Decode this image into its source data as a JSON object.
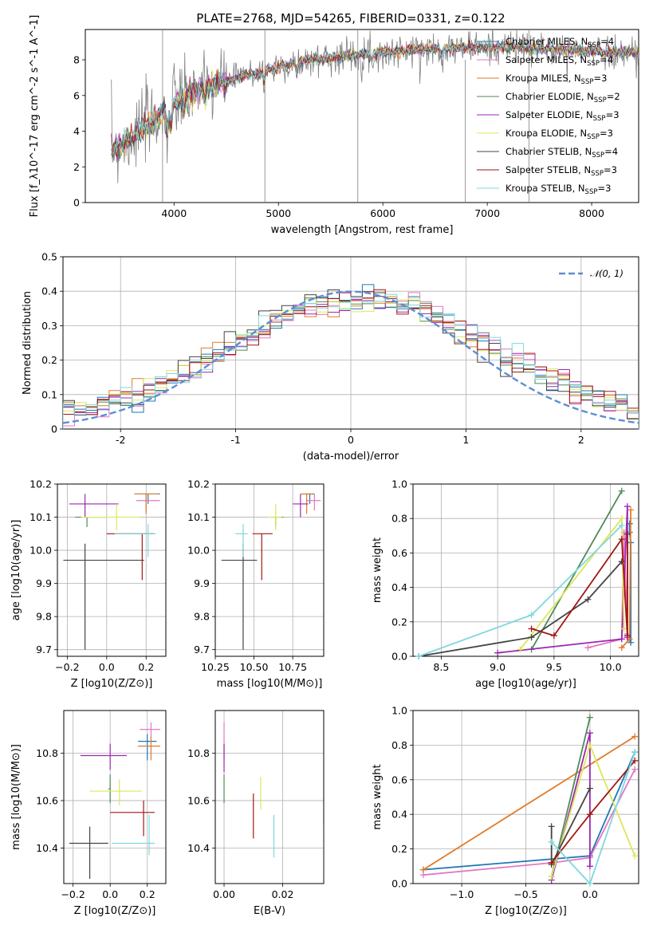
{
  "figure": {
    "title": "PLATE=2768, MJD=54265, FIBERID=0331, z=0.122"
  },
  "models": [
    {
      "name": "Chabrier MILES",
      "nssp": "4",
      "color": "#1f77b4"
    },
    {
      "name": "Salpeter MILES",
      "nssp": "4",
      "color": "#e377c2"
    },
    {
      "name": "Kroupa MILES",
      "nssp": "3",
      "color": "#e07b28"
    },
    {
      "name": "Chabrier ELODIE",
      "nssp": "2",
      "color": "#4e8a5a"
    },
    {
      "name": "Salpeter ELODIE",
      "nssp": "3",
      "color": "#9b27b0"
    },
    {
      "name": "Kroupa ELODIE",
      "nssp": "3",
      "color": "#dde65a"
    },
    {
      "name": "Chabrier STELIB",
      "nssp": "4",
      "color": "#444444"
    },
    {
      "name": "Salpeter STELIB",
      "nssp": "3",
      "color": "#a31515"
    },
    {
      "name": "Kroupa STELIB",
      "nssp": "3",
      "color": "#7fd8dc"
    }
  ],
  "chart_data": [
    {
      "id": "spectrum",
      "type": "line",
      "xlabel": "wavelength [Angstrom, rest frame]",
      "ylabel": "Flux [f_λ10^-17 erg cm^-2 s^-1 A^-1]",
      "xlim": [
        3150,
        8450
      ],
      "ylim": [
        0,
        9.7
      ],
      "xticks": [
        4000,
        5000,
        6000,
        7000,
        8000
      ],
      "yticks": [
        0,
        2,
        4,
        6,
        8
      ],
      "legend": "upper-right",
      "data_color": "#808080",
      "continuum": {
        "x": [
          3400,
          3500,
          3700,
          3900,
          4000,
          4200,
          4500,
          4800,
          5200,
          5600,
          6000,
          6400,
          6800,
          7200,
          7600,
          8000,
          8200
        ],
        "y": [
          3.0,
          3.2,
          4.2,
          5.0,
          5.6,
          6.2,
          6.8,
          7.3,
          7.9,
          8.2,
          8.4,
          8.6,
          8.7,
          8.7,
          8.6,
          8.5,
          8.4
        ]
      },
      "data_range": [
        3400,
        8450
      ]
    },
    {
      "id": "residuals",
      "type": "histogram",
      "xlabel": "(data-model)/error",
      "ylabel": "Normed distribution",
      "xlim": [
        -2.5,
        2.5
      ],
      "ylim": [
        0,
        0.5
      ],
      "xticks": [
        -2,
        -1,
        0,
        1,
        2
      ],
      "yticks": [
        0.0,
        0.1,
        0.2,
        0.3,
        0.4,
        0.5
      ],
      "bin_width": 0.1,
      "legend_label": "𝒩(0, 1)",
      "gaussian_color": "#5b8ed6",
      "grid": true
    },
    {
      "id": "age-vs-Z",
      "type": "errorbar",
      "xlabel": "Z [log10(Z/Z⊙)]",
      "ylabel": "age  [log10(age/yr)]",
      "xlim": [
        -0.25,
        0.3
      ],
      "ylim": [
        9.68,
        10.2
      ],
      "xticks": [
        -0.2,
        0.0,
        0.2
      ],
      "xticklabels": [
        "−0.2",
        "0.0",
        "0.2"
      ],
      "yticks": [
        9.7,
        9.8,
        9.9,
        10.0,
        10.1,
        10.2
      ],
      "yticklabels": [
        "9.7",
        "9.8",
        "9.9",
        "10.0",
        "10.1",
        "10.2"
      ],
      "points": [
        {
          "m": 0,
          "x": 0.21,
          "y": 10.17,
          "xe": [
            0.07,
            0.06
          ],
          "ye": [
            0.03,
            0.0
          ]
        },
        {
          "m": 1,
          "x": 0.2,
          "y": 10.15,
          "xe": [
            0.05,
            0.07
          ],
          "ye": [
            0.03,
            0.02
          ]
        },
        {
          "m": 2,
          "x": 0.2,
          "y": 10.17,
          "xe": [
            0.06,
            0.06
          ],
          "ye": [
            0.06,
            0.0
          ]
        },
        {
          "m": 3,
          "x": -0.1,
          "y": 10.1,
          "xe": [
            0.06,
            0.1
          ],
          "ye": [
            0.03,
            0.0
          ]
        },
        {
          "m": 4,
          "x": -0.11,
          "y": 10.14,
          "xe": [
            0.08,
            0.17
          ],
          "ye": [
            0.04,
            0.03
          ]
        },
        {
          "m": 5,
          "x": 0.05,
          "y": 10.1,
          "xe": [
            0.18,
            0.12
          ],
          "ye": [
            0.04,
            0.04
          ]
        },
        {
          "m": 6,
          "x": -0.11,
          "y": 9.97,
          "xe": [
            0.11,
            0.3
          ],
          "ye": [
            0.27,
            0.05
          ]
        },
        {
          "m": 7,
          "x": 0.18,
          "y": 10.05,
          "xe": [
            0.18,
            0.06
          ],
          "ye": [
            0.14,
            0.0
          ]
        },
        {
          "m": 8,
          "x": 0.21,
          "y": 10.05,
          "xe": [
            0.17,
            0.04
          ],
          "ye": [
            0.07,
            0.03
          ]
        }
      ]
    },
    {
      "id": "age-vs-mass",
      "type": "errorbar",
      "xlabel": "mass [log10(M/M⊙)]",
      "ylabel": "",
      "xlim": [
        10.25,
        10.95
      ],
      "ylim": [
        9.68,
        10.2
      ],
      "xticks": [
        10.25,
        10.5,
        10.75
      ],
      "xticklabels": [
        "10.25",
        "10.50",
        "10.75"
      ],
      "yticks": [
        9.7,
        9.8,
        9.9,
        10.0,
        10.1,
        10.2
      ],
      "yticklabels": [
        "9.7",
        "9.8",
        "9.9",
        "10.0",
        "10.1",
        "10.2"
      ],
      "points": [
        {
          "m": 0,
          "x": 10.86,
          "y": 10.17,
          "xe": [
            0.03,
            0.03
          ],
          "ye": [
            0.03,
            0.0
          ]
        },
        {
          "m": 1,
          "x": 10.89,
          "y": 10.15,
          "xe": [
            0.05,
            0.04
          ],
          "ye": [
            0.03,
            0.02
          ]
        },
        {
          "m": 2,
          "x": 10.84,
          "y": 10.17,
          "xe": [
            0.04,
            0.04
          ],
          "ye": [
            0.06,
            0.0
          ]
        },
        {
          "m": 3,
          "x": 10.64,
          "y": 10.1,
          "xe": [
            0.03,
            0.05
          ],
          "ye": [
            0.03,
            0.0
          ]
        },
        {
          "m": 4,
          "x": 10.8,
          "y": 10.14,
          "xe": [
            0.05,
            0.05
          ],
          "ye": [
            0.04,
            0.03
          ]
        },
        {
          "m": 5,
          "x": 10.64,
          "y": 10.1,
          "xe": [
            0.05,
            0.04
          ],
          "ye": [
            0.04,
            0.04
          ]
        },
        {
          "m": 6,
          "x": 10.43,
          "y": 9.97,
          "xe": [
            0.14,
            0.09
          ],
          "ye": [
            0.27,
            0.05
          ]
        },
        {
          "m": 7,
          "x": 10.55,
          "y": 10.05,
          "xe": [
            0.06,
            0.07
          ],
          "ye": [
            0.14,
            0.0
          ]
        },
        {
          "m": 8,
          "x": 10.43,
          "y": 10.05,
          "xe": [
            0.05,
            0.03
          ],
          "ye": [
            0.07,
            0.03
          ]
        }
      ]
    },
    {
      "id": "weight-vs-age",
      "type": "line",
      "xlabel": "age  [log10(age/yr)]",
      "ylabel": "mass weight",
      "xlim": [
        8.25,
        10.25
      ],
      "ylim": [
        0,
        1.0
      ],
      "xticks": [
        8.5,
        9.0,
        9.5,
        10.0
      ],
      "xticklabels": [
        "8.5",
        "9.0",
        "9.5",
        "10.0"
      ],
      "yticks": [
        0,
        0.2,
        0.4,
        0.6,
        0.8,
        1.0
      ],
      "yticklabels": [
        "0.0",
        "0.2",
        "0.4",
        "0.6",
        "0.8",
        "1.0"
      ],
      "grid": true,
      "series": [
        {
          "m": 0,
          "x": [
            10.18,
            10.18,
            10.17,
            10.17
          ],
          "y": [
            0.08,
            0.66,
            0.72,
            0.77
          ]
        },
        {
          "m": 1,
          "x": [
            9.8,
            10.1,
            10.12,
            10.15
          ],
          "y": [
            0.05,
            0.1,
            0.72,
            0.13
          ]
        },
        {
          "m": 2,
          "x": [
            10.1,
            10.17,
            10.18
          ],
          "y": [
            0.05,
            0.1,
            0.85
          ]
        },
        {
          "m": 3,
          "x": [
            9.3,
            10.1
          ],
          "y": [
            0.04,
            0.96
          ]
        },
        {
          "m": 4,
          "x": [
            9.0,
            10.1,
            10.15,
            10.15
          ],
          "y": [
            0.02,
            0.1,
            0.87,
            0.11
          ]
        },
        {
          "m": 5,
          "x": [
            9.2,
            10.1,
            10.12
          ],
          "y": [
            0.04,
            0.8,
            0.16
          ]
        },
        {
          "m": 6,
          "x": [
            8.3,
            9.3,
            9.8,
            10.1
          ],
          "y": [
            0.0,
            0.11,
            0.33,
            0.55
          ]
        },
        {
          "m": 7,
          "x": [
            9.3,
            9.5,
            10.1,
            10.15,
            10.15
          ],
          "y": [
            0.16,
            0.12,
            0.68,
            0.12,
            0.71
          ]
        },
        {
          "m": 8,
          "x": [
            8.3,
            9.3,
            10.1
          ],
          "y": [
            0.0,
            0.24,
            0.76
          ]
        }
      ]
    },
    {
      "id": "mass-vs-Z",
      "type": "errorbar",
      "xlabel": "Z [log10(Z/Z⊙)]",
      "ylabel": "mass [log10(M/M⊙)]",
      "xlim": [
        -0.25,
        0.3
      ],
      "ylim": [
        10.25,
        10.98
      ],
      "xticks": [
        -0.2,
        0.0,
        0.2
      ],
      "xticklabels": [
        "−0.2",
        "0.0",
        "0.2"
      ],
      "yticks": [
        10.4,
        10.6,
        10.8
      ],
      "yticklabels": [
        "10.4",
        "10.6",
        "10.8"
      ],
      "points": [
        {
          "m": 0,
          "x": 0.2,
          "y": 10.85,
          "xe": [
            0.05,
            0.05
          ],
          "ye": [
            0.08,
            0.03
          ]
        },
        {
          "m": 1,
          "x": 0.22,
          "y": 10.9,
          "xe": [
            0.06,
            0.05
          ],
          "ye": [
            0.04,
            0.03
          ]
        },
        {
          "m": 2,
          "x": 0.22,
          "y": 10.83,
          "xe": [
            0.07,
            0.05
          ],
          "ye": [
            0.06,
            0.04
          ]
        },
        {
          "m": 3,
          "x": 0.0,
          "y": 10.65,
          "xe": [
            0.01,
            0.0
          ],
          "ye": [
            0.06,
            0.06
          ]
        },
        {
          "m": 4,
          "x": 0.0,
          "y": 10.79,
          "xe": [
            0.16,
            0.09
          ],
          "ye": [
            0.06,
            0.05
          ]
        },
        {
          "m": 5,
          "x": 0.05,
          "y": 10.64,
          "xe": [
            0.16,
            0.12
          ],
          "ye": [
            0.06,
            0.05
          ]
        },
        {
          "m": 6,
          "x": -0.11,
          "y": 10.42,
          "xe": [
            0.11,
            0.1
          ],
          "ye": [
            0.15,
            0.07
          ]
        },
        {
          "m": 7,
          "x": 0.18,
          "y": 10.55,
          "xe": [
            0.18,
            0.06
          ],
          "ye": [
            0.1,
            0.05
          ]
        },
        {
          "m": 8,
          "x": 0.21,
          "y": 10.42,
          "xe": [
            0.2,
            0.03
          ],
          "ye": [
            0.05,
            0.12
          ]
        }
      ]
    },
    {
      "id": "mass-vs-EBV",
      "type": "errorbar",
      "xlabel": "E(B-V)",
      "ylabel": "",
      "xlim": [
        -0.003,
        0.034
      ],
      "ylim": [
        10.25,
        10.98
      ],
      "xticks": [
        0.0,
        0.02
      ],
      "xticklabels": [
        "0.00",
        "0.02"
      ],
      "yticks": [
        10.4,
        10.6,
        10.8
      ],
      "yticklabels": [
        "10.4",
        "10.6",
        "10.8"
      ],
      "points": [
        {
          "m": 1,
          "x": 0.0,
          "y": 10.85,
          "xe": [
            0.0,
            0.0
          ],
          "ye": [
            0.08,
            0.08
          ]
        },
        {
          "m": 4,
          "x": 0.0,
          "y": 10.79,
          "xe": [
            0.0,
            0.0
          ],
          "ye": [
            0.07,
            0.05
          ]
        },
        {
          "m": 3,
          "x": 0.0,
          "y": 10.65,
          "xe": [
            0.0,
            0.0
          ],
          "ye": [
            0.06,
            0.06
          ]
        },
        {
          "m": 5,
          "x": 0.0125,
          "y": 10.63,
          "xe": [
            0.0,
            0.0
          ],
          "ye": [
            0.07,
            0.07
          ]
        },
        {
          "m": 7,
          "x": 0.01,
          "y": 10.54,
          "xe": [
            0.0,
            0.0
          ],
          "ye": [
            0.1,
            0.09
          ]
        },
        {
          "m": 8,
          "x": 0.017,
          "y": 10.44,
          "xe": [
            0.0,
            0.0
          ],
          "ye": [
            0.08,
            0.1
          ]
        },
        {
          "m": 6,
          "x": 0.034,
          "y": 10.39,
          "xe": [
            0.0,
            0.0
          ],
          "ye": [
            0.12,
            0.11
          ]
        }
      ]
    },
    {
      "id": "weight-vs-Z",
      "type": "line",
      "xlabel": "Z [log10(Z/Z⊙)]",
      "ylabel": "mass weight",
      "xlim": [
        -1.38,
        0.38
      ],
      "ylim": [
        0,
        1.0
      ],
      "xticks": [
        -1.0,
        -0.5,
        0.0
      ],
      "xticklabels": [
        "−1.0",
        "−0.5",
        "0.0"
      ],
      "yticks": [
        0,
        0.2,
        0.4,
        0.6,
        0.8,
        1.0
      ],
      "yticklabels": [
        "0.0",
        "0.2",
        "0.4",
        "0.6",
        "0.8",
        "1.0"
      ],
      "grid": true,
      "series": [
        {
          "m": 0,
          "x": [
            -1.3,
            0.0,
            0.35
          ],
          "y": [
            0.08,
            0.16,
            0.76
          ]
        },
        {
          "m": 1,
          "x": [
            -1.3,
            -0.3,
            0.0,
            0.35
          ],
          "y": [
            0.05,
            0.12,
            0.15,
            0.66
          ]
        },
        {
          "m": 2,
          "x": [
            -1.3,
            0.35
          ],
          "y": [
            0.08,
            0.85
          ]
        },
        {
          "m": 3,
          "x": [
            -0.3,
            0.0
          ],
          "y": [
            0.04,
            0.96
          ]
        },
        {
          "m": 4,
          "x": [
            -0.3,
            0.0,
            0.0
          ],
          "y": [
            0.02,
            0.87,
            0.1
          ]
        },
        {
          "m": 5,
          "x": [
            -0.3,
            0.0,
            0.35
          ],
          "y": [
            0.04,
            0.8,
            0.16
          ]
        },
        {
          "m": 6,
          "x": [
            -0.3,
            -0.3,
            0.0
          ],
          "y": [
            0.33,
            0.11,
            0.55
          ]
        },
        {
          "m": 7,
          "x": [
            -0.3,
            0.0,
            0.35
          ],
          "y": [
            0.12,
            0.4,
            0.71
          ]
        },
        {
          "m": 8,
          "x": [
            -0.3,
            0.0,
            0.35
          ],
          "y": [
            0.24,
            0.0,
            0.76
          ]
        }
      ]
    }
  ]
}
